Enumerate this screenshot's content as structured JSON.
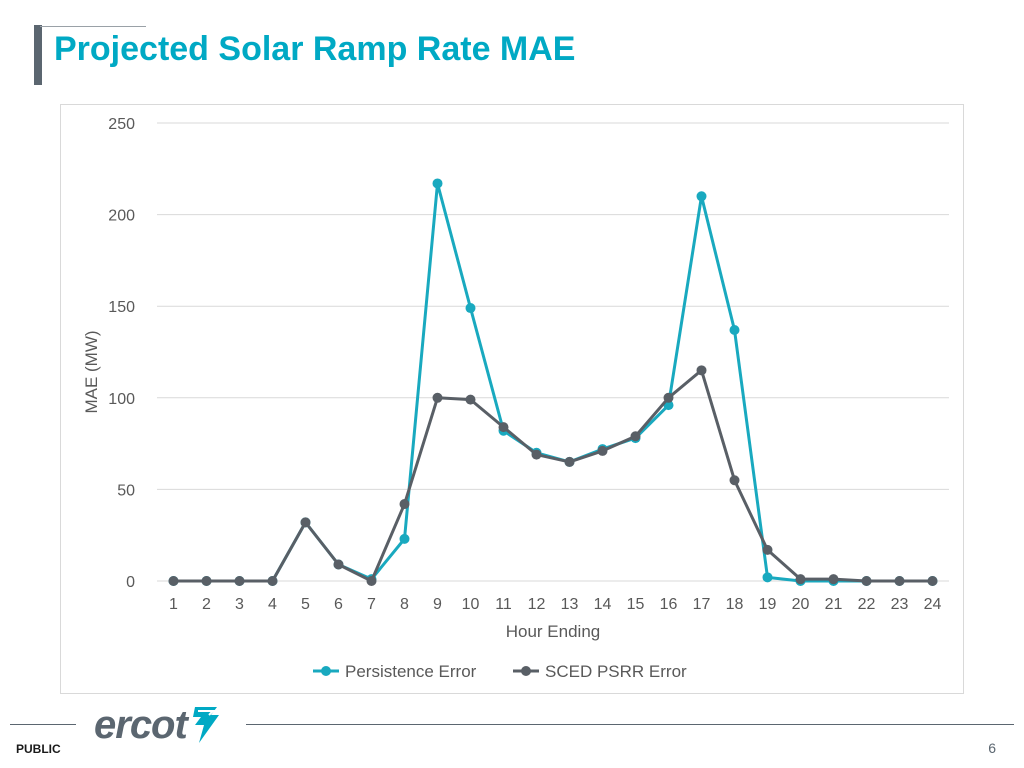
{
  "slide": {
    "title": "Projected Solar Ramp Rate MAE",
    "footer_label": "PUBLIC",
    "page_number": "6",
    "logo_text": "ercot",
    "accent_color": "#00a9c4",
    "dark_color": "#5b6670"
  },
  "chart_data": {
    "type": "line",
    "title": "",
    "xlabel": "Hour Ending",
    "ylabel": "MAE (MW)",
    "ylim": [
      0,
      250
    ],
    "yticks": [
      0,
      50,
      100,
      150,
      200,
      250
    ],
    "grid": true,
    "legend_position": "bottom",
    "categories": [
      "1",
      "2",
      "3",
      "4",
      "5",
      "6",
      "7",
      "8",
      "9",
      "10",
      "11",
      "12",
      "13",
      "14",
      "15",
      "16",
      "17",
      "18",
      "19",
      "20",
      "21",
      "22",
      "23",
      "24"
    ],
    "series": [
      {
        "name": "Persistence Error",
        "color": "#19a9bf",
        "values": [
          0,
          0,
          0,
          0,
          32,
          9,
          1,
          23,
          217,
          149,
          82,
          70,
          65,
          72,
          78,
          96,
          210,
          137,
          2,
          0,
          0,
          0,
          0,
          0
        ]
      },
      {
        "name": "SCED PSRR Error",
        "color": "#595f66",
        "values": [
          0,
          0,
          0,
          0,
          32,
          9,
          0,
          42,
          100,
          99,
          84,
          69,
          65,
          71,
          79,
          100,
          115,
          55,
          17,
          1,
          1,
          0,
          0,
          0
        ]
      }
    ]
  }
}
